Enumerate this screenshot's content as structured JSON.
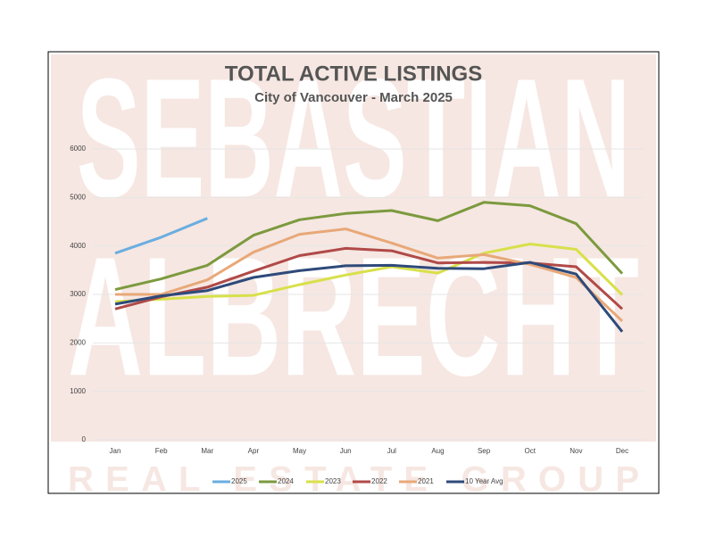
{
  "chart_data": {
    "type": "line",
    "title": "TOTAL ACTIVE LISTINGS",
    "subtitle": "City of Vancouver - March 2025",
    "watermark": [
      "SEBASTIAN",
      "ALBRECHT",
      "REAL ESTATE GROUP"
    ],
    "categories": [
      "Jan",
      "Feb",
      "Mar",
      "Apr",
      "May",
      "Jun",
      "Jul",
      "Aug",
      "Sep",
      "Oct",
      "Nov",
      "Dec"
    ],
    "ylim": [
      0,
      6000
    ],
    "yticks": [
      0,
      1000,
      2000,
      3000,
      4000,
      5000,
      6000
    ],
    "grid": true,
    "legend": "bottom",
    "series": [
      {
        "name": "2025",
        "color": "#6aaee0",
        "values": [
          3850,
          4180,
          4570,
          null,
          null,
          null,
          null,
          null,
          null,
          null,
          null,
          null
        ]
      },
      {
        "name": "2024",
        "color": "#7c9a3e",
        "values": [
          3100,
          3320,
          3600,
          4220,
          4540,
          4670,
          4730,
          4520,
          4900,
          4830,
          4460,
          3430
        ]
      },
      {
        "name": "2023",
        "color": "#d8e04a",
        "values": [
          2850,
          2900,
          2960,
          2980,
          3200,
          3400,
          3570,
          3440,
          3850,
          4040,
          3930,
          2990
        ]
      },
      {
        "name": "2022",
        "color": "#b04a48",
        "values": [
          2700,
          2950,
          3150,
          3480,
          3800,
          3950,
          3900,
          3650,
          3660,
          3650,
          3570,
          2700
        ]
      },
      {
        "name": "2021",
        "color": "#e8a878",
        "values": [
          3000,
          3000,
          3300,
          3870,
          4240,
          4350,
          4060,
          3750,
          3820,
          3620,
          3350,
          2450
        ]
      },
      {
        "name": "10 Year Avg",
        "color": "#2e4a7a",
        "values": [
          2800,
          2970,
          3080,
          3350,
          3490,
          3590,
          3600,
          3540,
          3530,
          3660,
          3420,
          2230
        ]
      }
    ]
  }
}
